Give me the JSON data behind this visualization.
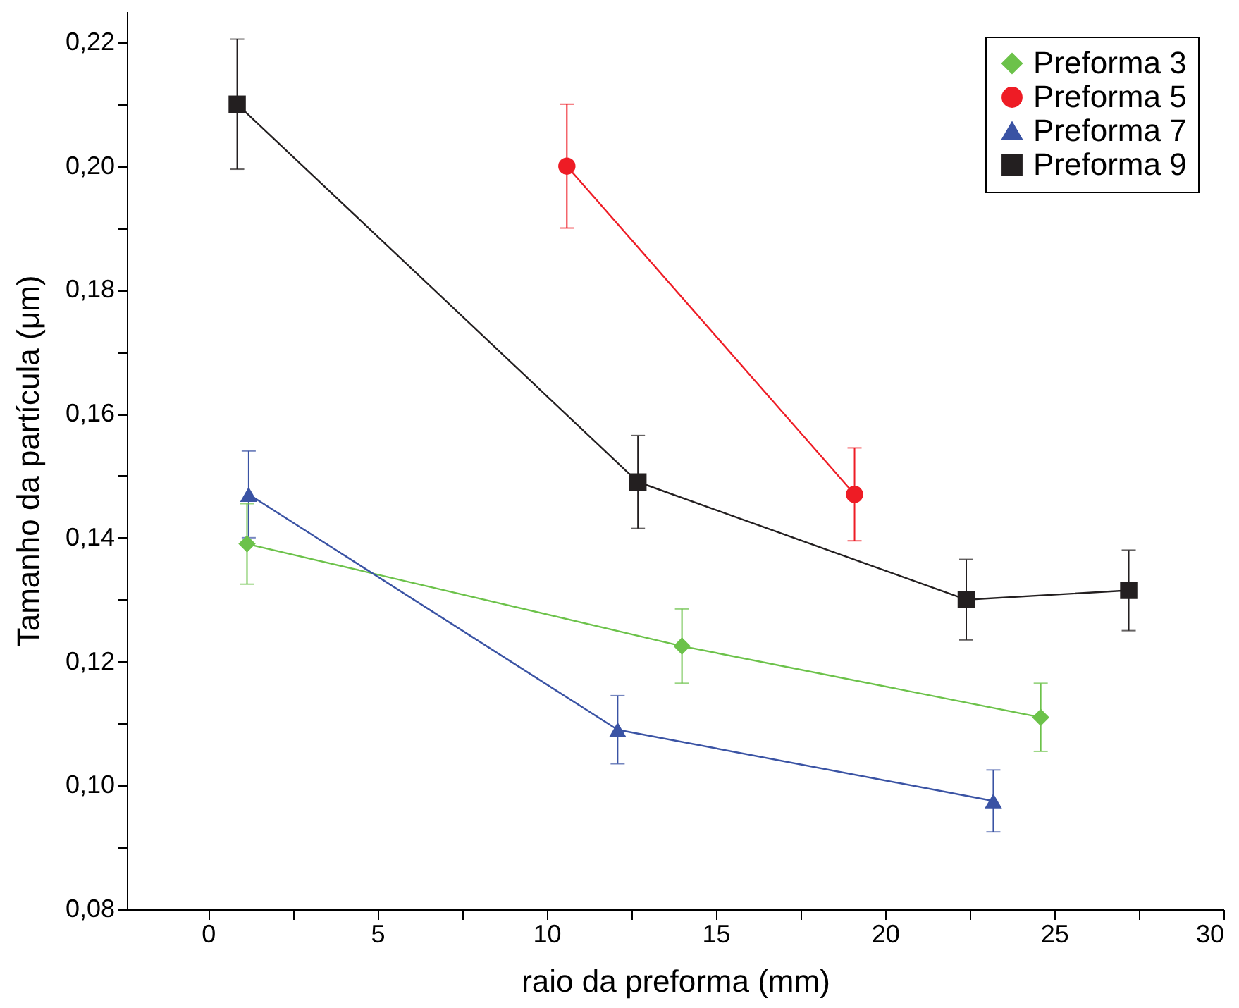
{
  "chart_data": {
    "type": "line",
    "xlabel": "raio da preforma (mm)",
    "ylabel": "Tamanho da partícula (μm)",
    "xlim": [
      -2.4,
      30
    ],
    "ylim": [
      0.08,
      0.225
    ],
    "xticks": [
      0,
      {
        "value": 2.5,
        "label": null
      },
      5,
      {
        "value": 7.5,
        "label": null
      },
      10,
      {
        "value": 12.5,
        "label": null
      },
      15,
      {
        "value": 17.5,
        "label": null
      },
      20,
      {
        "value": 22.5,
        "label": null
      },
      25,
      {
        "value": 27.5,
        "label": null
      },
      30
    ],
    "yticks": [
      {
        "value": 0.08,
        "label": "0,08"
      },
      {
        "value": 0.09,
        "label": null
      },
      {
        "value": 0.1,
        "label": "0,10"
      },
      {
        "value": 0.11,
        "label": null
      },
      {
        "value": 0.12,
        "label": "0,12"
      },
      {
        "value": 0.13,
        "label": null
      },
      {
        "value": 0.14,
        "label": "0,14"
      },
      {
        "value": 0.15,
        "label": null
      },
      {
        "value": 0.16,
        "label": "0,16"
      },
      {
        "value": 0.17,
        "label": null
      },
      {
        "value": 0.18,
        "label": "0,18"
      },
      {
        "value": 0.19,
        "label": null
      },
      {
        "value": 0.2,
        "label": "0,20"
      },
      {
        "value": 0.21,
        "label": null
      },
      {
        "value": 0.22,
        "label": "0,22"
      }
    ],
    "grid": false,
    "legend": "top right",
    "line_style": "solid",
    "series": [
      {
        "name": "Preforma 3",
        "color": "#6cc24a",
        "marker": "diamond",
        "x": [
          1.15,
          14.0,
          24.6
        ],
        "values": [
          0.139,
          0.1225,
          0.111
        ],
        "errors": [
          0.0065,
          0.006,
          0.0055
        ]
      },
      {
        "name": "Preforma 5",
        "color": "#ee1c25",
        "marker": "circle",
        "x": [
          10.6,
          19.1
        ],
        "values": [
          0.2,
          0.147
        ],
        "errors": [
          0.01,
          0.0075
        ]
      },
      {
        "name": "Preforma 7",
        "color": "#3a53a4",
        "marker": "triangle",
        "x": [
          1.2,
          12.1,
          23.2
        ],
        "values": [
          0.147,
          0.109,
          0.0975
        ],
        "errors": [
          0.007,
          0.0055,
          0.005
        ]
      },
      {
        "name": "Preforma 9",
        "color": "#231f20",
        "marker": "square",
        "x": [
          0.86,
          12.7,
          22.4,
          27.2
        ],
        "values": [
          0.21,
          0.149,
          0.13,
          0.1315
        ],
        "errors": [
          0.0105,
          0.0075,
          0.0065,
          0.0065
        ]
      }
    ]
  }
}
